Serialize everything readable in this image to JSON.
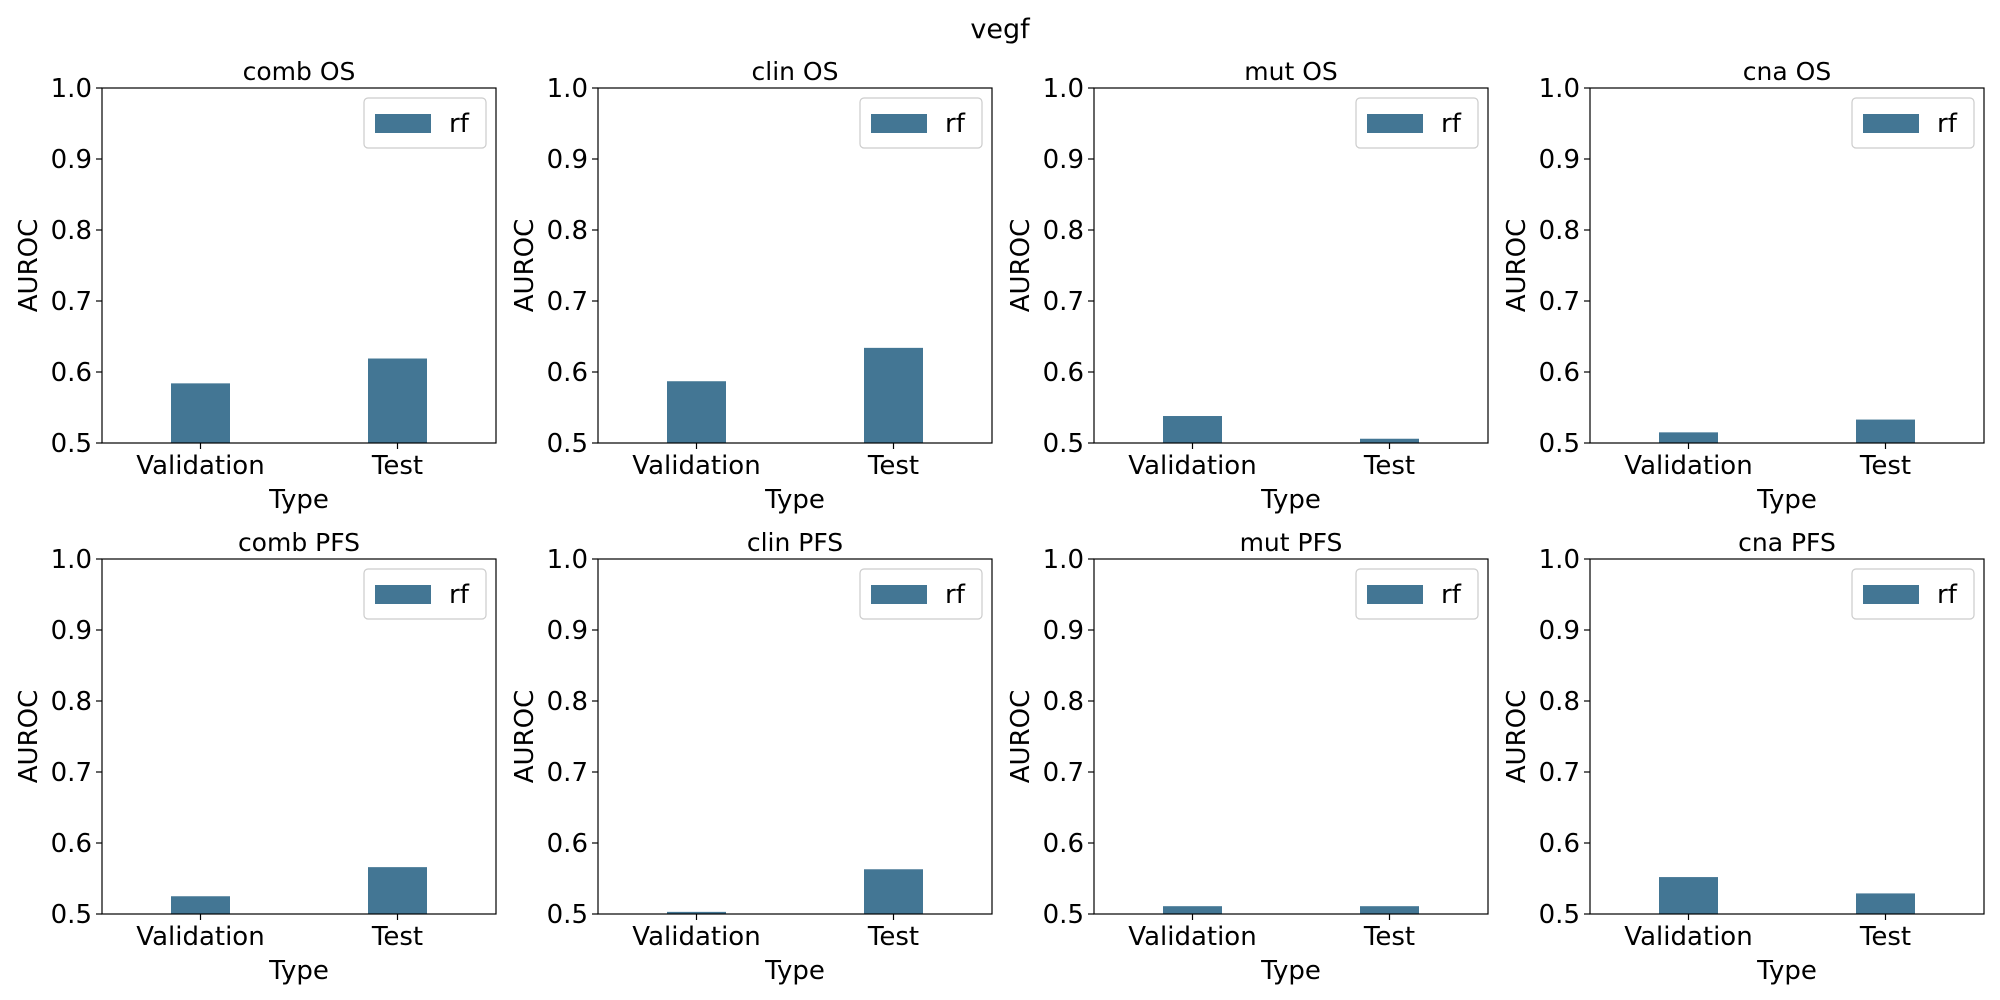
{
  "suptitle": "vegf",
  "colors": {
    "bar": "#437694",
    "axes": "#000000",
    "legend_border": "#cccccc"
  },
  "chart_data": [
    {
      "type": "bar",
      "title": "comb OS",
      "xlabel": "Type",
      "ylabel": "AUROC",
      "categories": [
        "Validation",
        "Test"
      ],
      "ylim": [
        0.5,
        1.0
      ],
      "yticks": [
        "0.5",
        "0.6",
        "0.7",
        "0.8",
        "0.9",
        "1.0"
      ],
      "series": [
        {
          "name": "rf",
          "values": [
            0.584,
            0.619
          ]
        }
      ],
      "legend_loc": "upper right",
      "grid": false
    },
    {
      "type": "bar",
      "title": "clin OS",
      "xlabel": "Type",
      "ylabel": "AUROC",
      "categories": [
        "Validation",
        "Test"
      ],
      "ylim": [
        0.5,
        1.0
      ],
      "yticks": [
        "0.5",
        "0.6",
        "0.7",
        "0.8",
        "0.9",
        "1.0"
      ],
      "series": [
        {
          "name": "rf",
          "values": [
            0.587,
            0.634
          ]
        }
      ],
      "legend_loc": "upper right",
      "grid": false
    },
    {
      "type": "bar",
      "title": "mut OS",
      "xlabel": "Type",
      "ylabel": "AUROC",
      "categories": [
        "Validation",
        "Test"
      ],
      "ylim": [
        0.5,
        1.0
      ],
      "yticks": [
        "0.5",
        "0.6",
        "0.7",
        "0.8",
        "0.9",
        "1.0"
      ],
      "series": [
        {
          "name": "rf",
          "values": [
            0.538,
            0.506
          ]
        }
      ],
      "legend_loc": "upper right",
      "grid": false
    },
    {
      "type": "bar",
      "title": "cna OS",
      "xlabel": "Type",
      "ylabel": "AUROC",
      "categories": [
        "Validation",
        "Test"
      ],
      "ylim": [
        0.5,
        1.0
      ],
      "yticks": [
        "0.5",
        "0.6",
        "0.7",
        "0.8",
        "0.9",
        "1.0"
      ],
      "series": [
        {
          "name": "rf",
          "values": [
            0.515,
            0.533
          ]
        }
      ],
      "legend_loc": "upper right",
      "grid": false
    },
    {
      "type": "bar",
      "title": "comb PFS",
      "xlabel": "Type",
      "ylabel": "AUROC",
      "categories": [
        "Validation",
        "Test"
      ],
      "ylim": [
        0.5,
        1.0
      ],
      "yticks": [
        "0.5",
        "0.6",
        "0.7",
        "0.8",
        "0.9",
        "1.0"
      ],
      "series": [
        {
          "name": "rf",
          "values": [
            0.525,
            0.566
          ]
        }
      ],
      "legend_loc": "upper right",
      "grid": false
    },
    {
      "type": "bar",
      "title": "clin PFS",
      "xlabel": "Type",
      "ylabel": "AUROC",
      "categories": [
        "Validation",
        "Test"
      ],
      "ylim": [
        0.5,
        1.0
      ],
      "yticks": [
        "0.5",
        "0.6",
        "0.7",
        "0.8",
        "0.9",
        "1.0"
      ],
      "series": [
        {
          "name": "rf",
          "values": [
            0.503,
            0.563
          ]
        }
      ],
      "legend_loc": "upper right",
      "grid": false
    },
    {
      "type": "bar",
      "title": "mut PFS",
      "xlabel": "Type",
      "ylabel": "AUROC",
      "categories": [
        "Validation",
        "Test"
      ],
      "ylim": [
        0.5,
        1.0
      ],
      "yticks": [
        "0.5",
        "0.6",
        "0.7",
        "0.8",
        "0.9",
        "1.0"
      ],
      "series": [
        {
          "name": "rf",
          "values": [
            0.511,
            0.511
          ]
        }
      ],
      "legend_loc": "upper right",
      "grid": false
    },
    {
      "type": "bar",
      "title": "cna PFS",
      "xlabel": "Type",
      "ylabel": "AUROC",
      "categories": [
        "Validation",
        "Test"
      ],
      "ylim": [
        0.5,
        1.0
      ],
      "yticks": [
        "0.5",
        "0.6",
        "0.7",
        "0.8",
        "0.9",
        "1.0"
      ],
      "series": [
        {
          "name": "rf",
          "values": [
            0.552,
            0.529
          ]
        }
      ],
      "legend_loc": "upper right",
      "grid": false
    }
  ]
}
